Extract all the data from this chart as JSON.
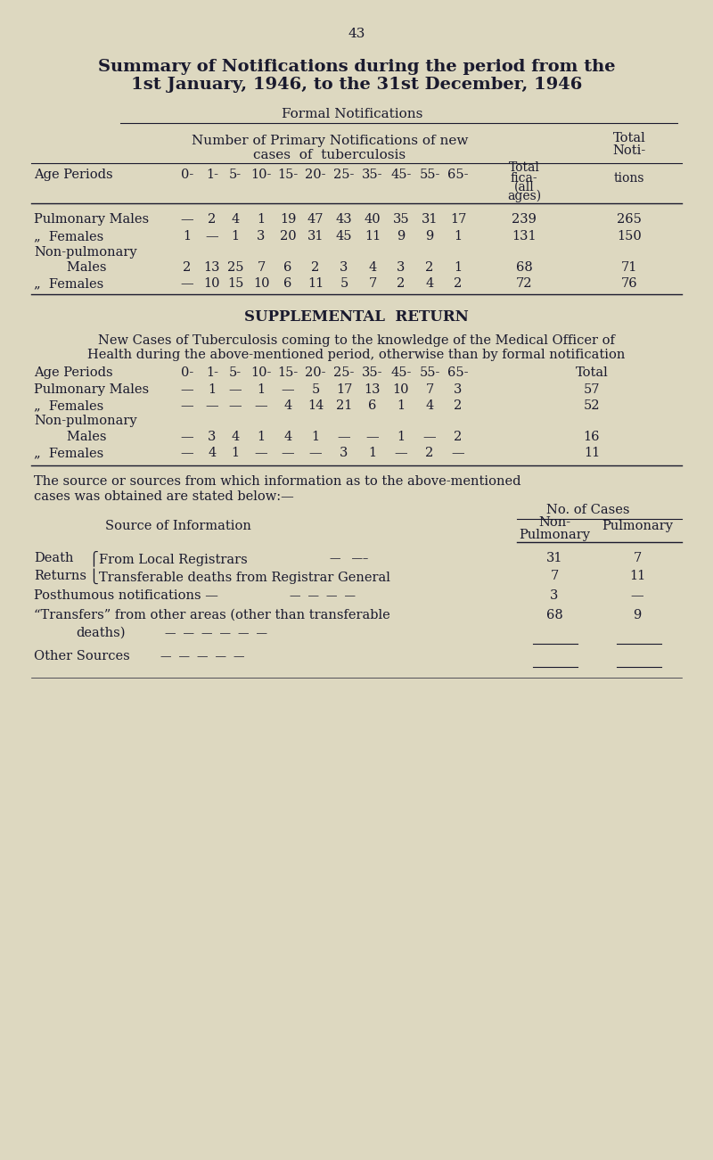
{
  "bg_color": "#ddd8c0",
  "text_color": "#1a1a2e",
  "page_number": "43",
  "title_line1": "Summary of Notifications during the period from the",
  "title_line2": "1st January, 1946, to the 31st December, 1946",
  "formal_header": "Formal Notifications",
  "primary_header1": "Number of Primary Notifications of new",
  "primary_header2": "cases  of  tuberculosis",
  "age_labels": [
    "0-",
    "1-",
    "5-",
    "10-",
    "15-",
    "20-",
    "25-",
    "35-",
    "45-",
    "55-",
    "65-"
  ],
  "formal_pul_m": [
    "—",
    "2",
    "4",
    "1",
    "19",
    "47",
    "43",
    "40",
    "35",
    "31",
    "17",
    "239",
    "265"
  ],
  "formal_pul_f": [
    "1",
    "—",
    "1",
    "3",
    "20",
    "31",
    "45",
    "11",
    "9",
    "9",
    "1",
    "131",
    "150"
  ],
  "formal_nonpul_m": [
    "2",
    "13",
    "25",
    "7",
    "6",
    "2",
    "3",
    "4",
    "3",
    "2",
    "1",
    "68",
    "71"
  ],
  "formal_nonpul_f": [
    "—",
    "10",
    "15",
    "10",
    "6",
    "11",
    "5",
    "7",
    "2",
    "4",
    "2",
    "72",
    "76"
  ],
  "suppl_pul_m": [
    "—",
    "1",
    "—",
    "1",
    "—",
    "5",
    "17",
    "13",
    "10",
    "7",
    "3",
    "57"
  ],
  "suppl_pul_f": [
    "—",
    "—",
    "—",
    "—",
    "4",
    "14",
    "21",
    "6",
    "1",
    "4",
    "2",
    "52"
  ],
  "suppl_nonpul_m": [
    "—",
    "3",
    "4",
    "1",
    "4",
    "1",
    "—",
    "—",
    "1",
    "—",
    "2",
    "16"
  ],
  "suppl_nonpul_f": [
    "—",
    "4",
    "1",
    "—",
    "—",
    "—",
    "3",
    "1",
    "—",
    "2",
    "—",
    "11"
  ],
  "source_pul": [
    "31",
    "7",
    "3",
    "68",
    "—"
  ],
  "source_nonpul": [
    "7",
    "11",
    "—",
    "9",
    "—"
  ]
}
